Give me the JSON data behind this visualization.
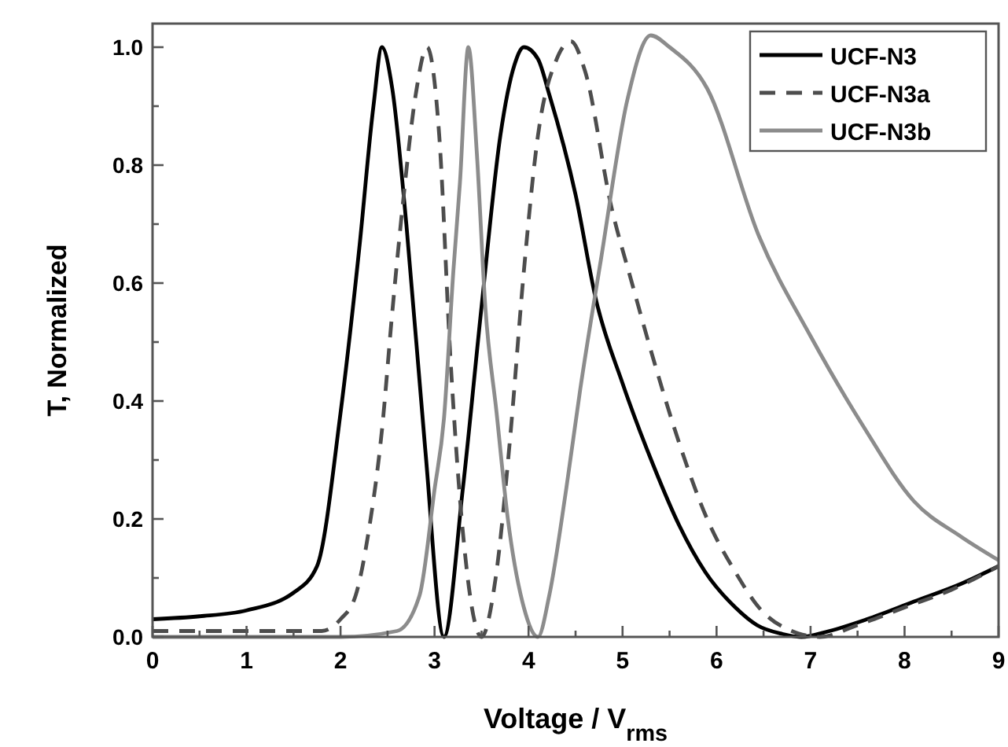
{
  "chart_data": {
    "type": "line",
    "xlabel": "Voltage / V$_{rms}$",
    "ylabel": "T, Normalized",
    "xlim": [
      0,
      9
    ],
    "ylim": [
      0,
      1.04
    ],
    "xticks": [
      0,
      {
        "value": 0.5,
        "label": null
      },
      1,
      {
        "value": 1.5,
        "label": null
      },
      2,
      {
        "value": 2.5,
        "label": null
      },
      3,
      {
        "value": 3.5,
        "label": null
      },
      4,
      {
        "value": 4.5,
        "label": null
      },
      5,
      {
        "value": 5.5,
        "label": null
      },
      6,
      {
        "value": 6.5,
        "label": null
      },
      7,
      {
        "value": 7.5,
        "label": null
      },
      8,
      {
        "value": 8.5,
        "label": null
      },
      9
    ],
    "yticks": [
      {
        "value": 0,
        "label": "0.0"
      },
      {
        "value": 0.1,
        "label": null
      },
      {
        "value": 0.2,
        "label": "0.2"
      },
      {
        "value": 0.3,
        "label": null
      },
      {
        "value": 0.4,
        "label": "0.4"
      },
      {
        "value": 0.5,
        "label": null
      },
      {
        "value": 0.6,
        "label": "0.6"
      },
      {
        "value": 0.7,
        "label": null
      },
      {
        "value": 0.8,
        "label": "0.8"
      },
      {
        "value": 0.9,
        "label": null
      },
      {
        "value": 1,
        "label": "1.0"
      }
    ],
    "legend": "top right",
    "grid": false,
    "marker": "none",
    "series": [
      {
        "name": "UCF-N3",
        "color": "#000000",
        "line_style": "solid",
        "x": [
          0,
          0.5,
          1,
          1.5,
          1.75,
          2,
          2.2,
          2.35,
          2.44,
          2.55,
          2.7,
          2.9,
          3.1,
          3.3,
          3.5,
          3.7,
          3.85,
          3.95,
          4.1,
          4.22,
          4.5,
          4.72,
          5,
          5.33,
          5.6,
          5.88,
          6.2,
          6.43,
          6.7,
          6.9,
          7.2,
          7.6,
          8.1,
          8.6,
          9
        ],
        "values": [
          0.03,
          0.035,
          0.045,
          0.075,
          0.12,
          0.38,
          0.66,
          0.9,
          1.0,
          0.93,
          0.7,
          0.32,
          0.0,
          0.25,
          0.56,
          0.85,
          0.97,
          1.0,
          0.98,
          0.92,
          0.75,
          0.57,
          0.43,
          0.29,
          0.19,
          0.11,
          0.05,
          0.02,
          0.005,
          0.0,
          0.01,
          0.03,
          0.06,
          0.09,
          0.12
        ]
      },
      {
        "name": "UCF-N3a",
        "color": "#4d4d4d",
        "line_style": "dashed",
        "x": [
          0,
          1,
          1.8,
          2.0,
          2.16,
          2.3,
          2.44,
          2.55,
          2.66,
          2.8,
          2.92,
          3.05,
          3.17,
          3.3,
          3.5,
          3.65,
          3.8,
          3.95,
          4.1,
          4.3,
          4.45,
          4.6,
          4.88,
          5.1,
          5.33,
          5.6,
          5.9,
          6.2,
          6.45,
          6.8,
          7.1,
          7.5,
          8.0,
          8.5,
          9
        ],
        "values": [
          0.01,
          0.01,
          0.01,
          0.03,
          0.07,
          0.18,
          0.35,
          0.55,
          0.73,
          0.92,
          1.0,
          0.85,
          0.47,
          0.18,
          0.0,
          0.1,
          0.33,
          0.62,
          0.85,
          0.98,
          1.01,
          0.96,
          0.73,
          0.6,
          0.47,
          0.33,
          0.2,
          0.11,
          0.05,
          0.01,
          0.0,
          0.02,
          0.05,
          0.08,
          0.12
        ]
      },
      {
        "name": "UCF-N3b",
        "color": "#8c8c8c",
        "line_style": "solid",
        "x": [
          0,
          1,
          2,
          2.6,
          2.84,
          3.0,
          3.1,
          3.2,
          3.27,
          3.36,
          3.45,
          3.54,
          3.66,
          3.78,
          3.95,
          4.1,
          4.22,
          4.4,
          4.55,
          4.77,
          5.05,
          5.3,
          5.5,
          5.9,
          6.45,
          7.0,
          7.55,
          8.1,
          8.6,
          9
        ],
        "values": [
          0,
          0,
          0,
          0.01,
          0.07,
          0.25,
          0.37,
          0.62,
          0.77,
          1.0,
          0.82,
          0.56,
          0.38,
          0.2,
          0.05,
          0.0,
          0.07,
          0.25,
          0.42,
          0.64,
          0.91,
          1.02,
          1.0,
          0.93,
          0.68,
          0.51,
          0.36,
          0.23,
          0.17,
          0.13
        ]
      }
    ]
  }
}
